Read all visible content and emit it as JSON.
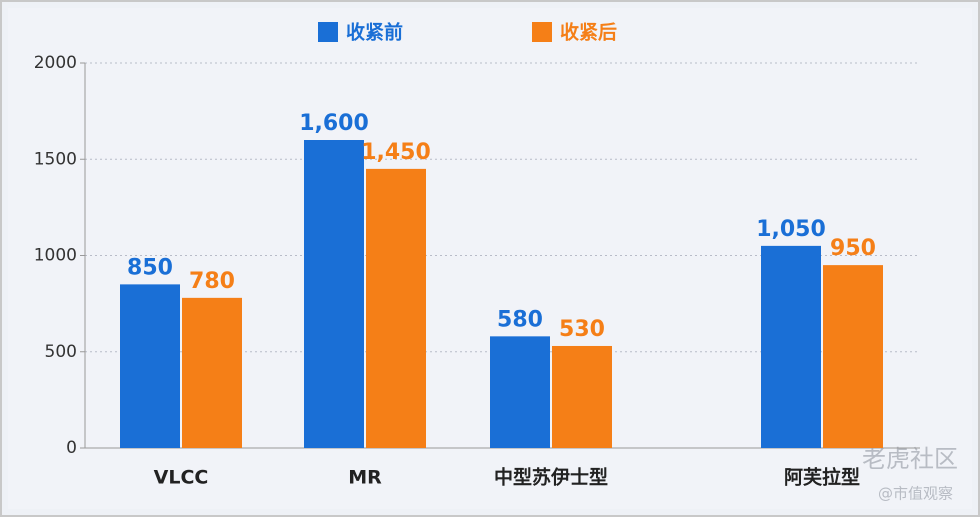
{
  "chart_data": {
    "type": "bar",
    "categories": [
      "VLCC",
      "MR",
      "中型苏伊士型",
      "阿芙拉型"
    ],
    "series": [
      {
        "name": "收紧前",
        "color": "#1a6fd6",
        "values": [
          850,
          1600,
          580,
          1050
        ],
        "value_labels": [
          "850",
          "1,600",
          "580",
          "1,050"
        ]
      },
      {
        "name": "收紧后",
        "color": "#f57f17",
        "values": [
          780,
          1450,
          530,
          950
        ],
        "value_labels": [
          "780",
          "1,450",
          "530",
          "950"
        ]
      }
    ],
    "ylim": [
      0,
      2000
    ],
    "yticks": [
      0,
      500,
      1000,
      1500,
      2000
    ],
    "grid": true
  },
  "watermark": [
    "老虎社区",
    "@市值观察"
  ]
}
